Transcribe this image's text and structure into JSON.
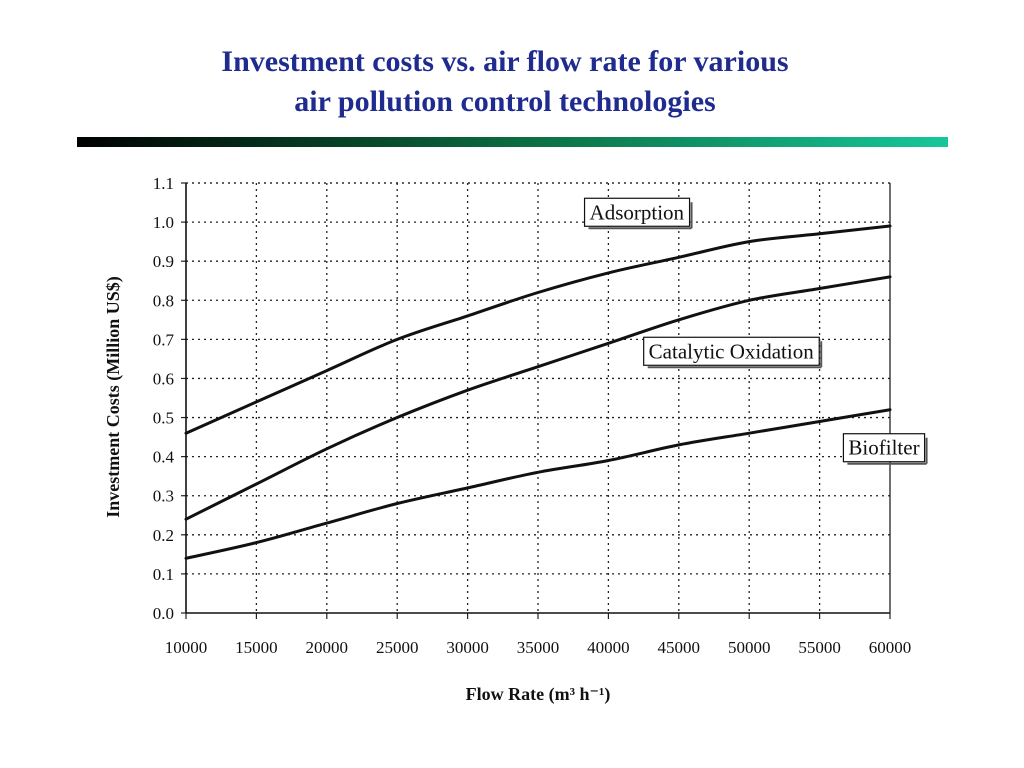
{
  "slide": {
    "title_line1": "Investment costs vs. air flow rate for various",
    "title_line2": "air pollution control technologies",
    "title_color": "#1f2b8f",
    "rule_gradient": [
      "#000000",
      "#0b6b3f",
      "#16c79a"
    ]
  },
  "chart_data": {
    "type": "line",
    "title": "",
    "xlabel": "Flow Rate (m³ h⁻¹)",
    "ylabel": "Investment Costs (Million US$)",
    "xlim": [
      10000,
      60000
    ],
    "ylim": [
      0.0,
      1.1
    ],
    "x_ticks": [
      "10000",
      "15000",
      "20000",
      "25000",
      "30000",
      "35000",
      "40000",
      "45000",
      "50000",
      "55000",
      "60000"
    ],
    "y_ticks": [
      "0.0",
      "0.1",
      "0.2",
      "0.3",
      "0.4",
      "0.5",
      "0.6",
      "0.7",
      "0.8",
      "0.9",
      "1.0",
      "1.1"
    ],
    "grid": true,
    "grid_style": "dotted",
    "line_color": "#111111",
    "x": [
      10000,
      15000,
      20000,
      25000,
      30000,
      35000,
      40000,
      45000,
      50000,
      55000,
      60000
    ],
    "series": [
      {
        "name": "Adsorption",
        "values": [
          0.46,
          0.54,
          0.62,
          0.7,
          0.76,
          0.82,
          0.87,
          0.91,
          0.95,
          0.97,
          0.99
        ]
      },
      {
        "name": "Catalytic Oxidation",
        "values": [
          0.24,
          0.33,
          0.42,
          0.5,
          0.57,
          0.63,
          0.69,
          0.75,
          0.8,
          0.83,
          0.86
        ]
      },
      {
        "name": "Biofilter",
        "values": [
          0.14,
          0.18,
          0.23,
          0.28,
          0.32,
          0.36,
          0.39,
          0.43,
          0.46,
          0.49,
          0.52
        ]
      }
    ]
  }
}
